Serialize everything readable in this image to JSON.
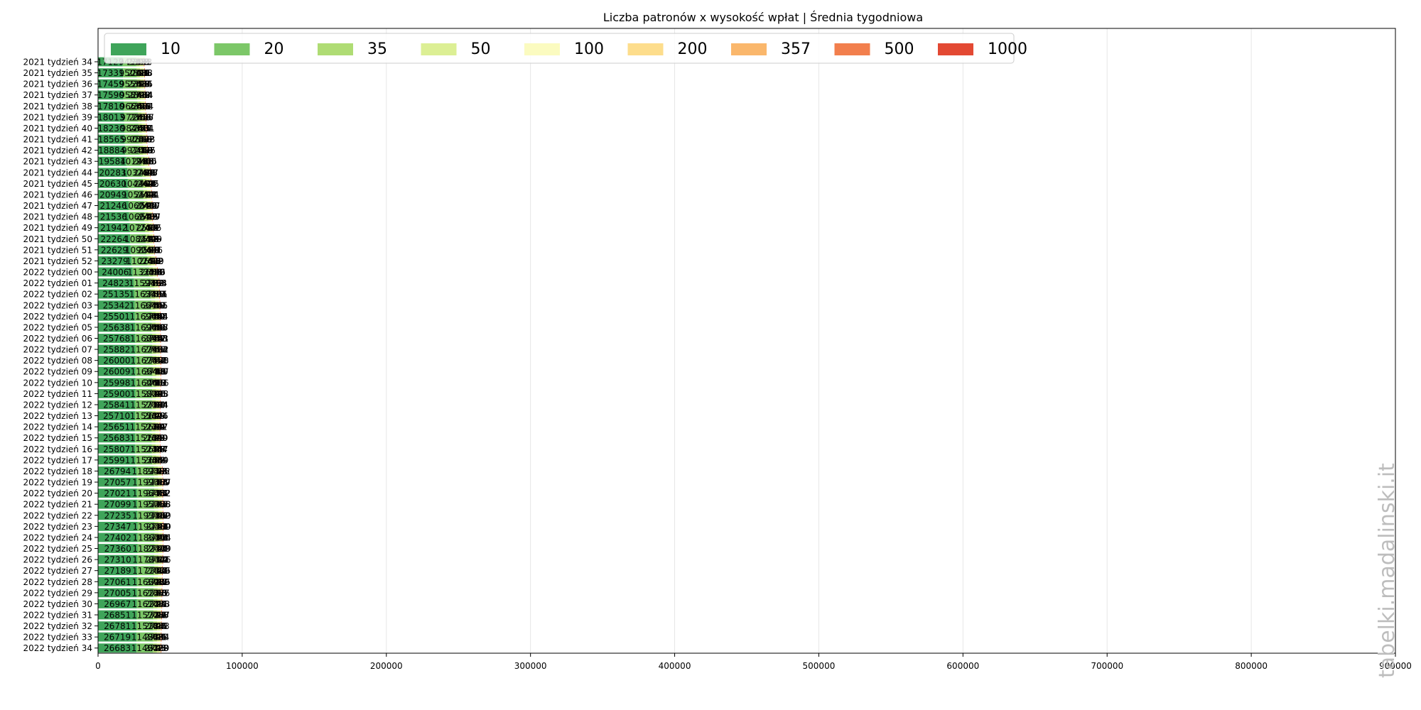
{
  "chart_data": {
    "type": "bar",
    "orientation": "horizontal",
    "stacked": true,
    "title": "Liczba patronów x wysokość wpłat | Średnia tygodniowa",
    "xlim": [
      0,
      900000
    ],
    "x_ticks": [
      0,
      100000,
      200000,
      300000,
      400000,
      500000,
      600000,
      700000,
      800000,
      900000
    ],
    "grid": true,
    "legend_position": "top-left",
    "categories": [
      "2021 tydzień 34",
      "2021 tydzień 35",
      "2021 tydzień 36",
      "2021 tydzień 37",
      "2021 tydzień 38",
      "2021 tydzień 39",
      "2021 tydzień 40",
      "2021 tydzień 41",
      "2021 tydzień 42",
      "2021 tydzień 43",
      "2021 tydzień 44",
      "2021 tydzień 45",
      "2021 tydzień 46",
      "2021 tydzień 47",
      "2021 tydzień 48",
      "2021 tydzień 49",
      "2021 tydzień 50",
      "2021 tydzień 51",
      "2021 tydzień 52",
      "2022 tydzień 00",
      "2022 tydzień 01",
      "2022 tydzień 02",
      "2022 tydzień 03",
      "2022 tydzień 04",
      "2022 tydzień 05",
      "2022 tydzień 06",
      "2022 tydzień 07",
      "2022 tydzień 08",
      "2022 tydzień 09",
      "2022 tydzień 10",
      "2022 tydzień 11",
      "2022 tydzień 12",
      "2022 tydzień 13",
      "2022 tydzień 14",
      "2022 tydzień 15",
      "2022 tydzień 16",
      "2022 tydzień 17",
      "2022 tydzień 18",
      "2022 tydzień 19",
      "2022 tydzień 20",
      "2022 tydzień 21",
      "2022 tydzień 22",
      "2022 tydzień 23",
      "2022 tydzień 24",
      "2022 tydzień 25",
      "2022 tydzień 26",
      "2022 tydzień 27",
      "2022 tydzień 28",
      "2022 tydzień 29",
      "2022 tydzień 30",
      "2022 tydzień 31",
      "2022 tydzień 32",
      "2022 tydzień 33",
      "2022 tydzień 34"
    ],
    "series": [
      {
        "name": "10",
        "color": "#3fa45a",
        "values": [
          17127,
          17331,
          17459,
          17590,
          17810,
          18013,
          18230,
          18565,
          18884,
          19584,
          20283,
          20630,
          20949,
          21246,
          21536,
          21942,
          22264,
          22629,
          23279,
          24006,
          24823,
          25135,
          25342,
          25501,
          25638,
          25768,
          25882,
          26000,
          26009,
          25998,
          25900,
          25841,
          25710,
          25651,
          25683,
          25807,
          25991,
          26794,
          27057,
          27021,
          27099,
          27235,
          27347,
          27402,
          27360,
          27310,
          27189,
          27061,
          27005,
          26967,
          26851,
          26781,
          26719,
          26683
        ]
      },
      {
        "name": "20",
        "color": "#7cc768",
        "values": [
          9451,
          9501,
          9555,
          9587,
          9666,
          9778,
          9846,
          9901,
          9970,
          10199,
          10378,
          10446,
          10541,
          10604,
          10667,
          10770,
          10843,
          10906,
          11076,
          11330,
          11591,
          11632,
          11664,
          11690,
          11690,
          11689,
          11679,
          11678,
          11664,
          11646,
          11582,
          11571,
          11556,
          11527,
          11516,
          11521,
          11536,
          11893,
          11993,
          11964,
          11952,
          11931,
          11903,
          11861,
          11824,
          11784,
          11718,
          11669,
          11613,
          11614,
          11577,
          11518,
          11486,
          11461
        ]
      },
      {
        "name": "35",
        "color": "#afdc74",
        "values": [
          2302,
          2311,
          2319,
          2325,
          2336,
          2356,
          2371,
          2396,
          2410,
          2438,
          2484,
          2497,
          2513,
          2529,
          2542,
          2552,
          2572,
          2589,
          2618,
          2666,
          2722,
          2735,
          2745,
          2740,
          2740,
          2739,
          2735,
          2724,
          2718,
          2715,
          2701,
          2701,
          2696,
          2689,
          2689,
          2686,
          2687,
          2757,
          2781,
          2779,
          2771,
          2768,
          2781,
          2773,
          2768,
          2759,
          2750,
          2735,
          2733,
          2729,
          2717,
          2707,
          2709,
          2703
        ]
      },
      {
        "name": "50",
        "color": "#dcef94",
        "values": [
          2413,
          2418,
          2415,
          2414,
          2424,
          2427,
          2401,
          2398,
          2395,
          2405,
          2417,
          2425,
          2421,
          2417,
          2407,
          2406,
          2409,
          2416,
          2429,
          2446,
          2464,
          2451,
          2445,
          2444,
          2447,
          2441,
          2432,
          2428,
          2427,
          2416,
          2388,
          2384,
          2376,
          2367,
          2359,
          2347,
          2349,
          2392,
          2387,
          2382,
          2378,
          2369,
          2359,
          2354,
          2339,
          2326,
          2306,
          2286,
          2275,
          2273,
          2257,
          2243,
          2234,
          2229
        ]
      },
      {
        "name": "100",
        "color": "#fbfbc0",
        "values": [
          431,
          435,
          434,
          434,
          432,
          436,
          434,
          432,
          437,
          440,
          443,
          442,
          444,
          440,
          439,
          442,
          446,
          451,
          452,
          459,
          463,
          461,
          461,
          458,
          456,
          453,
          453,
          451,
          450,
          451,
          445,
          444,
          444,
          442,
          440,
          444,
          444,
          456,
          459,
          457,
          456,
          452,
          450,
          446,
          443,
          441,
          439,
          439,
          437,
          436,
          433,
          431,
          429,
          428
        ]
      },
      {
        "name": "200",
        "color": "#fddd8c",
        "values": [
          96,
          94,
          93,
          92,
          91,
          89,
          89,
          89,
          89,
          88,
          92,
          91,
          92,
          92,
          93,
          94,
          95,
          96,
          97,
          100,
          103,
          105,
          105,
          104,
          103,
          103,
          101,
          100,
          99,
          99,
          96,
          95,
          95,
          94,
          93,
          93,
          92,
          93,
          95,
          95,
          95,
          95,
          94,
          94,
          94,
          94,
          93,
          95,
          95,
          95,
          96,
          95,
          94,
          95
        ]
      },
      {
        "name": "357",
        "color": "#fab76c",
        "values": [
          45,
          46,
          46,
          46,
          46,
          46,
          45,
          45,
          43,
          45,
          45,
          44,
          44,
          45,
          45,
          45,
          46,
          46,
          46,
          48,
          50,
          50,
          49,
          49,
          48,
          47,
          47,
          47,
          46,
          45,
          45,
          44,
          45,
          44,
          43,
          43,
          43,
          43,
          44,
          44,
          43,
          42,
          41,
          41,
          41,
          40,
          41,
          42,
          43,
          44,
          44,
          44,
          45,
          45
        ]
      },
      {
        "name": "500",
        "color": "#f27f4d",
        "values": [
          28,
          29,
          29,
          29,
          29,
          30,
          29,
          30,
          30,
          28,
          28,
          28,
          28,
          29,
          29,
          29,
          29,
          29,
          30,
          31,
          32,
          32,
          32,
          32,
          32,
          32,
          33,
          32,
          31,
          30,
          30,
          30,
          29,
          29,
          29,
          29,
          29,
          28,
          28,
          27,
          27,
          27,
          28,
          28,
          27,
          27,
          27,
          27,
          26,
          27,
          27,
          26,
          26,
          25
        ]
      },
      {
        "name": "1000",
        "color": "#e34933",
        "values": [
          9,
          8,
          8,
          8,
          8,
          8,
          8,
          7,
          7,
          8,
          9,
          9,
          9,
          8,
          8,
          8,
          9,
          9,
          9,
          9,
          9,
          9,
          9,
          9,
          9,
          9,
          9,
          9,
          10,
          10,
          9,
          9,
          9,
          9,
          9,
          8,
          8,
          8,
          8,
          8,
          8,
          8,
          8,
          7,
          7,
          7,
          7,
          7,
          7,
          7,
          7,
          7,
          6,
          6
        ]
      }
    ]
  },
  "watermark": "tabelki.madalinski.it"
}
